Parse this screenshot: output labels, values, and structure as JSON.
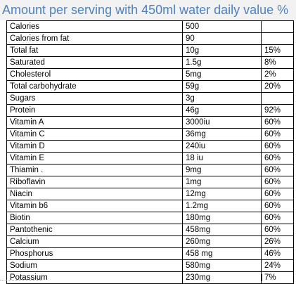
{
  "title": "Amount per serving with 450ml water daily value %",
  "rows": [
    {
      "name": "Calories",
      "amount": "500",
      "dv": ""
    },
    {
      "name": "Calories from fat",
      "amount": "90",
      "dv": ""
    },
    {
      "name": "Total fat",
      "amount": "10g",
      "dv": "15%"
    },
    {
      "name": "Saturated",
      "amount": "1.5g",
      "dv": "8%"
    },
    {
      "name": "Cholesterol",
      "amount": "5mg",
      "dv": "2%"
    },
    {
      "name": "Total carbohydrate",
      "amount": "59g",
      "dv": "20%"
    },
    {
      "name": "Sugars",
      "amount": "3g",
      "dv": ""
    },
    {
      "name": "Protein",
      "amount": "46g",
      "dv": "92%"
    },
    {
      "name": "Vitamin A",
      "amount": "3000iu",
      "dv": "60%"
    },
    {
      "name": "Vitamin C",
      "amount": "36mg",
      "dv": "60%"
    },
    {
      "name": "Vitamin D",
      "amount": "240iu",
      "dv": "60%"
    },
    {
      "name": "Vitamin E",
      "amount": "18 iu",
      "dv": "60%"
    },
    {
      "name": "Thiamin .",
      "amount": "9mg",
      "dv": "60%"
    },
    {
      "name": "Riboflavin",
      "amount": "1mg",
      "dv": "60%"
    },
    {
      "name": "Niacin",
      "amount": "12mg",
      "dv": "60%"
    },
    {
      "name": "Vitamin b6",
      "amount": "1.2mg",
      "dv": "60%"
    },
    {
      "name": "Biotin",
      "amount": "180mg",
      "dv": "60%"
    },
    {
      "name": "Pantothenic",
      "amount": "458mg",
      "dv": "60%"
    },
    {
      "name": "Calcium",
      "amount": "260mg",
      "dv": "26%"
    },
    {
      "name": "Phosphorus",
      "amount": "458 mg",
      "dv": "46%"
    },
    {
      "name": "Sodium",
      "amount": "580mg",
      "dv": "24%"
    },
    {
      "name": "Potassium",
      "amount": "230mg",
      "dv": "7%"
    }
  ]
}
